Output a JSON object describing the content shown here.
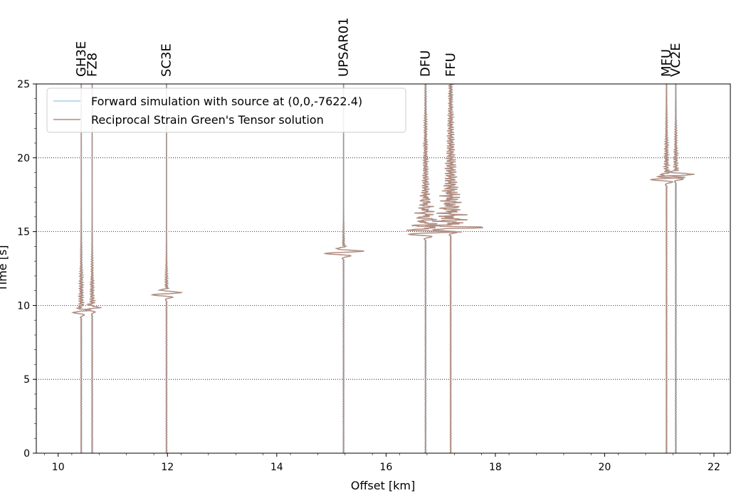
{
  "chart_data": {
    "type": "line",
    "xlabel": "Offset [km]",
    "ylabel": "Time [s]",
    "xlim": [
      9.6,
      22.3
    ],
    "ylim": [
      0,
      25
    ],
    "xticks": [
      10,
      12,
      14,
      16,
      18,
      20,
      22
    ],
    "yticks": [
      0,
      5,
      10,
      15,
      20,
      25
    ],
    "grid": "horizontal-dotted",
    "legend_placement": "top-left",
    "series": [
      {
        "name": "Forward simulation with source at (0,0,-7622.4)",
        "color": "#a6cee3"
      },
      {
        "name": "Reciprocal Strain Green's Tensor solution",
        "color": "#b48c7e"
      }
    ],
    "stations": [
      {
        "name": "GH3E",
        "offset": 10.42,
        "arrival": 9.6,
        "amp": 0.16,
        "coda": 0.8,
        "pre": 0.04
      },
      {
        "name": "FZ8",
        "offset": 10.62,
        "arrival": 9.8,
        "amp": 0.14,
        "coda": 0.7,
        "pre": 0.04
      },
      {
        "name": "SC3E",
        "offset": 11.98,
        "arrival": 10.8,
        "amp": 0.3,
        "coda": 0.5,
        "pre": 0.03
      },
      {
        "name": "UPSAR01",
        "offset": 15.22,
        "arrival": 13.6,
        "amp": 0.38,
        "coda": 0.4,
        "pre": 0.03
      },
      {
        "name": "DFU",
        "offset": 16.72,
        "arrival": 14.9,
        "amp": 0.34,
        "coda": 1.2,
        "pre": 0.08
      },
      {
        "name": "FFU",
        "offset": 17.18,
        "arrival": 15.2,
        "amp": 0.36,
        "coda": 1.6,
        "pre": 0.1
      },
      {
        "name": "MFU",
        "offset": 21.13,
        "arrival": 18.6,
        "amp": 0.32,
        "coda": 0.8,
        "pre": 0.04
      },
      {
        "name": "VC2E",
        "offset": 21.3,
        "arrival": 18.8,
        "amp": 0.38,
        "coda": 0.7,
        "pre": 0.04
      }
    ]
  }
}
